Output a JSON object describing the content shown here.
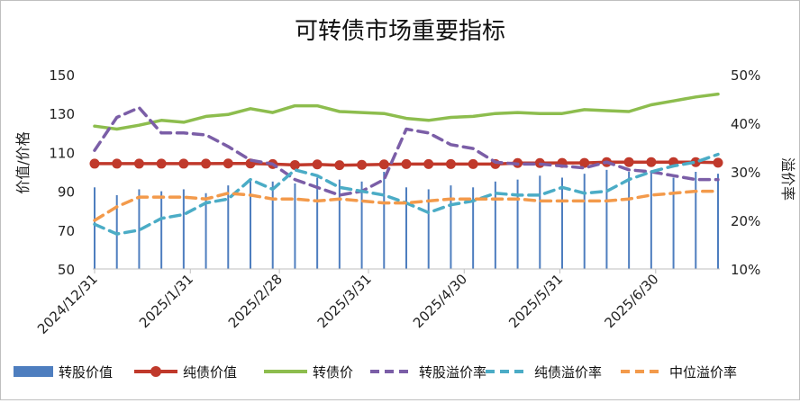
{
  "chart_data": {
    "type": "line",
    "title": "可转债市场重要指标",
    "ylabel_left": "价值/价格",
    "ylabel_right": "溢价率",
    "ylim_left": [
      50,
      150
    ],
    "yticks_left": [
      "50",
      "70",
      "90",
      "110",
      "130",
      "150"
    ],
    "ylim_right": [
      0.1,
      0.5
    ],
    "yticks_right": [
      "10%",
      "20%",
      "30%",
      "40%",
      "50%"
    ],
    "x_ticks": [
      "2024/12/31",
      "2025/1/31",
      "2025/2/28",
      "2025/3/31",
      "2025/4/30",
      "2025/5/31",
      "2025/6/30"
    ],
    "x_count": 29,
    "x_tick_positions": [
      0,
      4.3,
      8.3,
      12.3,
      16.6,
      20.9,
      25.2
    ],
    "legend_position": "bottom",
    "series": [
      {
        "name": "转股价值",
        "type": "bar",
        "axis": "left",
        "color": "#4e7ebf",
        "values": [
          92,
          88,
          91,
          90,
          91,
          89,
          93,
          96,
          95,
          94,
          97,
          96,
          95,
          100,
          92,
          91,
          93,
          92,
          95,
          96,
          98,
          97,
          99,
          101,
          100,
          100,
          97,
          100,
          99
        ]
      },
      {
        "name": "纯债价值",
        "type": "line-marker",
        "axis": "left",
        "color": "#c0392b",
        "values": [
          104.2,
          104.2,
          104.2,
          104.2,
          104.2,
          104.2,
          104.3,
          104.3,
          104.0,
          103.5,
          103.8,
          103.4,
          103.6,
          103.8,
          104.0,
          104.0,
          104.0,
          104.0,
          104.0,
          104.5,
          104.5,
          104.6,
          104.6,
          105.0,
          105.0,
          105.0,
          105.0,
          105.0,
          104.7
        ]
      },
      {
        "name": "转债价",
        "type": "line",
        "axis": "left",
        "color": "#8dbd4e",
        "values": [
          123.5,
          122.0,
          124.0,
          126.5,
          125.5,
          128.5,
          129.5,
          132.5,
          130.5,
          134.0,
          134.0,
          131.0,
          130.5,
          130.0,
          127.5,
          126.5,
          128.0,
          128.5,
          130.0,
          130.5,
          130.0,
          130.0,
          132.0,
          131.5,
          131.0,
          134.5,
          136.5,
          138.5,
          140.0
        ]
      },
      {
        "name": "转股溢价率",
        "type": "dashed",
        "axis": "left",
        "color": "#7b5ea7",
        "values": [
          111,
          128,
          133,
          120,
          120,
          119,
          113,
          106,
          104,
          96,
          92,
          88,
          90,
          96,
          122,
          120,
          114,
          112,
          105,
          104,
          104,
          103,
          102,
          105,
          101,
          100,
          98,
          96,
          96
        ]
      },
      {
        "name": "纯债溢价率",
        "type": "dashed",
        "axis": "left",
        "color": "#4bacc6",
        "values": [
          73,
          68,
          70,
          76,
          78,
          84,
          86,
          96,
          91,
          101,
          98,
          92,
          90,
          88,
          84,
          79,
          83,
          85,
          89,
          88,
          88,
          92,
          89,
          90,
          96,
          100,
          103,
          105,
          109
        ]
      },
      {
        "name": "中位溢价率",
        "type": "dashed",
        "axis": "left",
        "color": "#f39a4b",
        "values": [
          75,
          82,
          87,
          87,
          87,
          86,
          89,
          88,
          86,
          86,
          85,
          86,
          85,
          84,
          84,
          85,
          86,
          86,
          86,
          86,
          85,
          85,
          85,
          85,
          86,
          88,
          89,
          90,
          90
        ]
      }
    ]
  }
}
